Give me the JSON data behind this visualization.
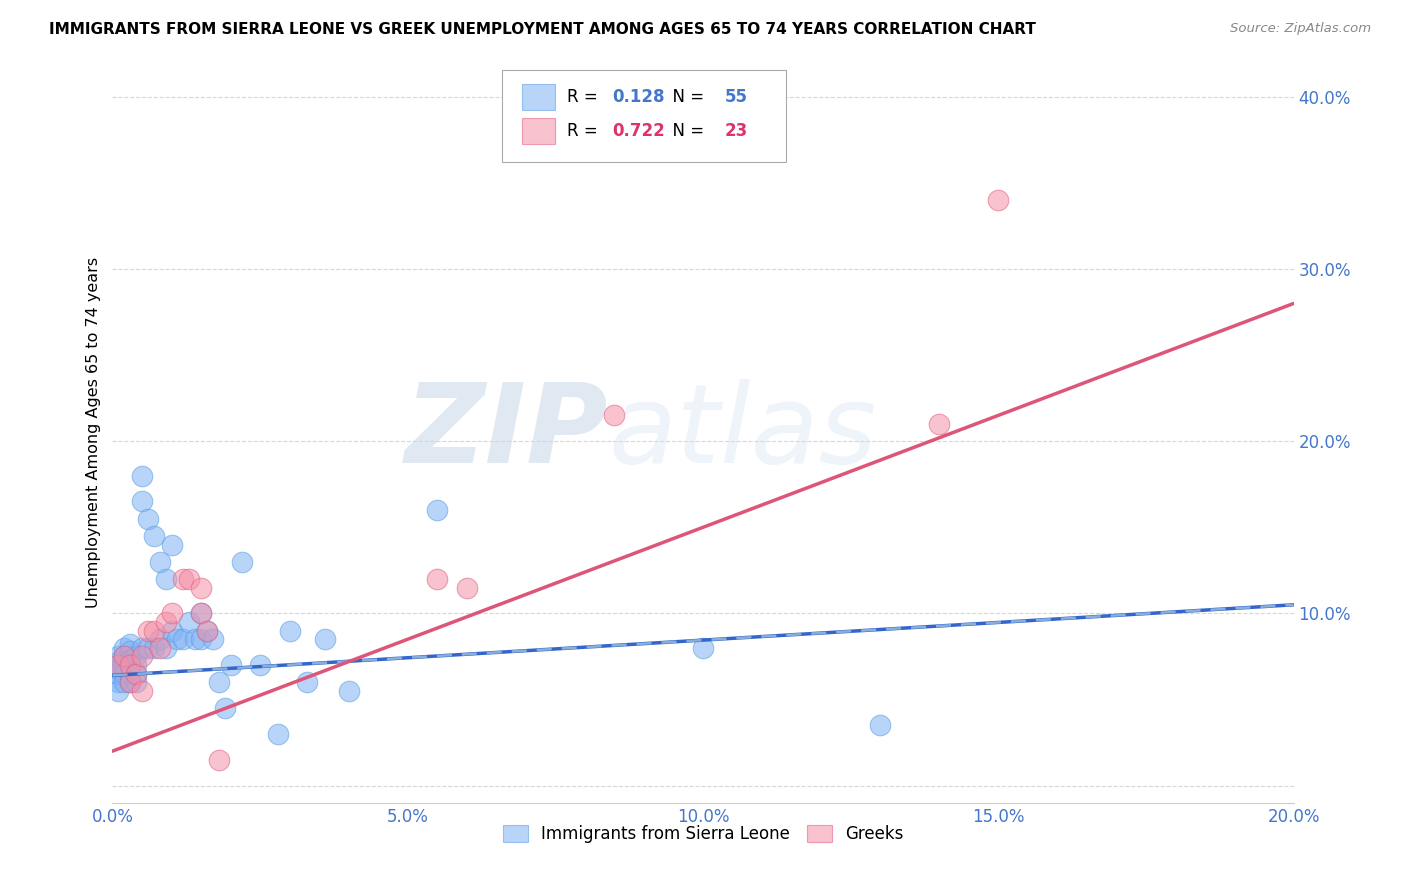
{
  "title": "IMMIGRANTS FROM SIERRA LEONE VS GREEK UNEMPLOYMENT AMONG AGES 65 TO 74 YEARS CORRELATION CHART",
  "source": "Source: ZipAtlas.com",
  "ylabel": "Unemployment Among Ages 65 to 74 years",
  "xlim": [
    0.0,
    0.2
  ],
  "ylim": [
    -0.01,
    0.42
  ],
  "xticks": [
    0.0,
    0.05,
    0.1,
    0.15,
    0.2
  ],
  "yticks": [
    0.0,
    0.1,
    0.2,
    0.3,
    0.4
  ],
  "xtick_labels": [
    "0.0%",
    "5.0%",
    "10.0%",
    "15.0%",
    "20.0%"
  ],
  "ytick_labels": [
    "",
    "10.0%",
    "20.0%",
    "30.0%",
    "40.0%"
  ],
  "blue_color": "#7fb3f5",
  "blue_edge_color": "#5a9de0",
  "pink_color": "#f590a8",
  "pink_edge_color": "#e06080",
  "blue_line_color": "#3366cc",
  "blue_dash_color": "#99bbdd",
  "pink_line_color": "#dd5577",
  "blue_R": 0.128,
  "blue_N": 55,
  "pink_R": 0.722,
  "pink_N": 23,
  "watermark_zip": "ZIP",
  "watermark_atlas": "atlas",
  "legend_blue_label": "Immigrants from Sierra Leone",
  "legend_pink_label": "Greeks",
  "blue_scatter_x": [
    0.001,
    0.001,
    0.001,
    0.001,
    0.001,
    0.001,
    0.001,
    0.002,
    0.002,
    0.002,
    0.002,
    0.002,
    0.003,
    0.003,
    0.003,
    0.003,
    0.003,
    0.004,
    0.004,
    0.004,
    0.004,
    0.005,
    0.005,
    0.005,
    0.006,
    0.006,
    0.007,
    0.007,
    0.008,
    0.008,
    0.009,
    0.009,
    0.01,
    0.01,
    0.011,
    0.012,
    0.013,
    0.014,
    0.015,
    0.015,
    0.016,
    0.017,
    0.018,
    0.019,
    0.02,
    0.022,
    0.025,
    0.028,
    0.03,
    0.033,
    0.036,
    0.04,
    0.055,
    0.1,
    0.13
  ],
  "blue_scatter_y": [
    0.07,
    0.075,
    0.072,
    0.065,
    0.068,
    0.06,
    0.055,
    0.08,
    0.075,
    0.07,
    0.065,
    0.06,
    0.082,
    0.078,
    0.073,
    0.065,
    0.06,
    0.075,
    0.07,
    0.065,
    0.06,
    0.18,
    0.165,
    0.08,
    0.155,
    0.08,
    0.145,
    0.08,
    0.13,
    0.085,
    0.12,
    0.08,
    0.14,
    0.09,
    0.085,
    0.085,
    0.095,
    0.085,
    0.1,
    0.085,
    0.09,
    0.085,
    0.06,
    0.045,
    0.07,
    0.13,
    0.07,
    0.03,
    0.09,
    0.06,
    0.085,
    0.055,
    0.16,
    0.08,
    0.035
  ],
  "pink_scatter_x": [
    0.001,
    0.002,
    0.003,
    0.003,
    0.004,
    0.005,
    0.005,
    0.006,
    0.007,
    0.008,
    0.009,
    0.01,
    0.012,
    0.013,
    0.015,
    0.015,
    0.016,
    0.018,
    0.055,
    0.06,
    0.085,
    0.14,
    0.15
  ],
  "pink_scatter_y": [
    0.07,
    0.075,
    0.07,
    0.06,
    0.065,
    0.075,
    0.055,
    0.09,
    0.09,
    0.08,
    0.095,
    0.1,
    0.12,
    0.12,
    0.1,
    0.115,
    0.09,
    0.015,
    0.12,
    0.115,
    0.215,
    0.21,
    0.34
  ],
  "blue_trendline_x": [
    0.0,
    0.2
  ],
  "blue_trendline_y": [
    0.064,
    0.105
  ],
  "pink_trendline_x": [
    0.0,
    0.2
  ],
  "pink_trendline_y": [
    0.02,
    0.28
  ]
}
